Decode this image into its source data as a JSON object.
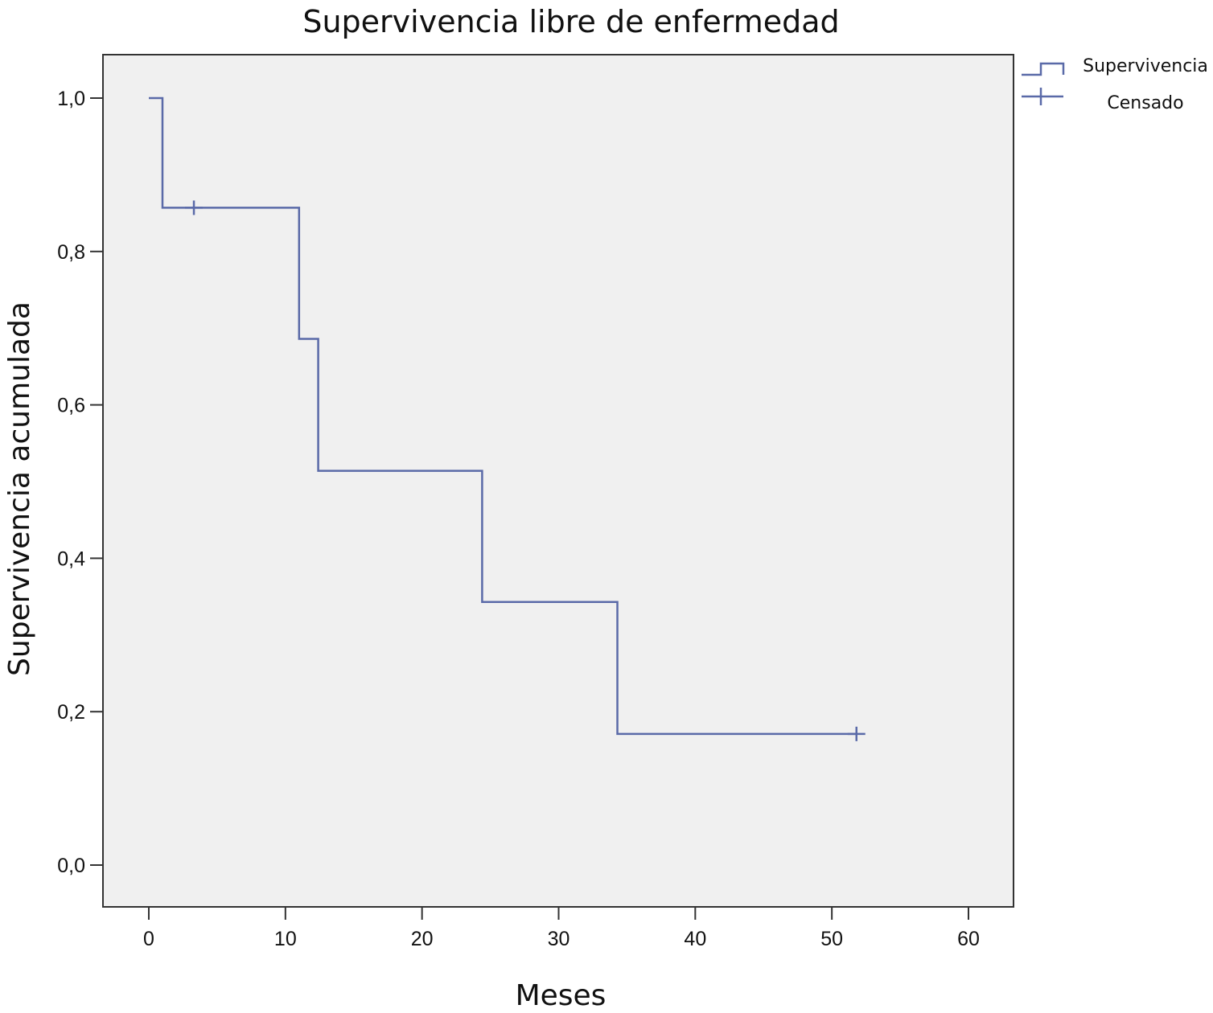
{
  "chart_data": {
    "type": "line",
    "title": "Supervivencia libre de enfermedad",
    "xlabel": "Meses",
    "ylabel": "Supervivencia acumulada",
    "xlim": [
      0,
      60
    ],
    "ylim": [
      0,
      1
    ],
    "x_ticks": [
      0,
      10,
      20,
      30,
      40,
      50,
      60
    ],
    "x_tick_labels": [
      "0",
      "10",
      "20",
      "30",
      "40",
      "50",
      "60"
    ],
    "y_ticks": [
      0,
      0.2,
      0.4,
      0.6,
      0.8,
      1.0
    ],
    "y_tick_labels": [
      "0,0",
      "0,2",
      "0,4",
      "0,6",
      "0,8",
      "1,0"
    ],
    "grid": false,
    "legend_position": "top-right, outside plot",
    "legend": [
      {
        "name": "Supervivencia",
        "symbol": "step"
      },
      {
        "name": "Censado",
        "symbol": "plus"
      }
    ],
    "series": [
      {
        "name": "Supervivencia",
        "style": "step",
        "x": [
          0,
          1,
          11,
          12.4,
          24.4,
          34.3,
          51.8
        ],
        "y": [
          1.0,
          0.857,
          0.686,
          0.514,
          0.343,
          0.171,
          0.171
        ]
      },
      {
        "name": "Censado",
        "style": "marker-plus",
        "x": [
          3.3,
          51.8
        ],
        "y": [
          0.857,
          0.171
        ]
      }
    ],
    "colors": {
      "line": "#5a6aa8",
      "plot_background": "#f0f0f0",
      "frame": "#333333"
    }
  }
}
